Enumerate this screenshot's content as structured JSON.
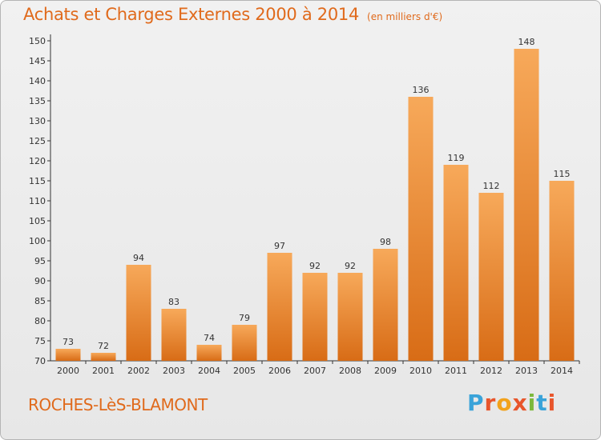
{
  "header": {
    "title": "Achats et Charges Externes 2000 à 2014",
    "subtitle": "(en milliers d'€)"
  },
  "footer": {
    "commune": "ROCHES-LèS-BLAMONT",
    "logo_text": "Proxiti"
  },
  "colors": {
    "accent": "#e06a1c",
    "bar_light": "#f7a95a",
    "bar_dark": "#d86c16",
    "logo_letters": [
      "#3aa3d9",
      "#e8552b",
      "#f2a21b",
      "#e8552b",
      "#7bb83b",
      "#3aa3d9",
      "#e8552b"
    ]
  },
  "chart_data": {
    "type": "bar",
    "title": "Achats et Charges Externes 2000 à 2014",
    "subtitle": "(en milliers d'€)",
    "xlabel": "",
    "ylabel": "",
    "ylim": [
      70,
      150
    ],
    "ytick_step": 5,
    "grid": false,
    "categories": [
      "2000",
      "2001",
      "2002",
      "2003",
      "2004",
      "2005",
      "2006",
      "2007",
      "2008",
      "2009",
      "2010",
      "2011",
      "2012",
      "2013",
      "2014"
    ],
    "values": [
      73,
      72,
      94,
      83,
      74,
      79,
      97,
      92,
      92,
      98,
      136,
      119,
      112,
      148,
      115
    ],
    "data_labels": [
      "73",
      "72",
      "94",
      "83",
      "74",
      "79",
      "97",
      "92",
      "92",
      "98",
      "136",
      "119",
      "112",
      "148",
      "115"
    ]
  }
}
